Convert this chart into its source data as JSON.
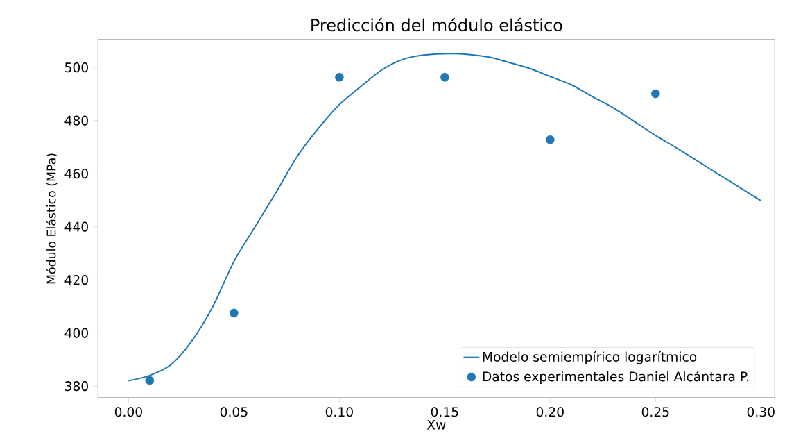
{
  "chart_data": {
    "type": "line",
    "title": "Predicción del módulo elástico",
    "xlabel": "Xw",
    "ylabel": "Módulo Elástico (MPa)",
    "xlim": [
      -0.0145,
      0.3066
    ],
    "ylim": [
      375.6,
      510.5
    ],
    "xticks": [
      {
        "value": 0,
        "label": "0.00"
      },
      {
        "value": 0.05,
        "label": "0.05"
      },
      {
        "value": 0.1,
        "label": "0.10"
      },
      {
        "value": 0.15,
        "label": "0.15"
      },
      {
        "value": 0.2,
        "label": "0.20"
      },
      {
        "value": 0.25,
        "label": "0.25"
      },
      {
        "value": 0.3,
        "label": "0.30"
      }
    ],
    "yticks": [
      380,
      400,
      420,
      440,
      460,
      480,
      500
    ],
    "grid": false,
    "legend": "bottom right",
    "series": [
      {
        "name": "Modelo semiempírico logarítmico",
        "color": "#1f77b4",
        "marker": "none",
        "line_style": "solid",
        "x": [
          0,
          0.01,
          0.02,
          0.03,
          0.04,
          0.05,
          0.06,
          0.07,
          0.08,
          0.09,
          0.1,
          0.11,
          0.12,
          0.13,
          0.14,
          0.155,
          0.17,
          0.18,
          0.19,
          0.2,
          0.21,
          0.22,
          0.23,
          0.24,
          0.25,
          0.26,
          0.27,
          0.28,
          0.29,
          0.3
        ],
        "values": [
          382,
          384,
          388,
          397,
          410,
          427,
          440,
          453,
          466.5,
          477,
          486,
          492.7,
          499,
          503,
          504.7,
          505.2,
          504,
          502,
          499.7,
          496.6,
          493.5,
          489,
          484.8,
          479.6,
          474.4,
          469.7,
          464.7,
          459.7,
          454.8,
          449.8
        ]
      },
      {
        "name": "Datos experimentales Daniel Alcántara P.",
        "type": "scatter",
        "color": "#1f77b4",
        "marker": "circle",
        "x": [
          0.01,
          0.05,
          0.1,
          0.15,
          0.2,
          0.25
        ],
        "values": [
          382.1,
          407.5,
          496.3,
          496.3,
          472.8,
          490.1
        ]
      }
    ]
  }
}
